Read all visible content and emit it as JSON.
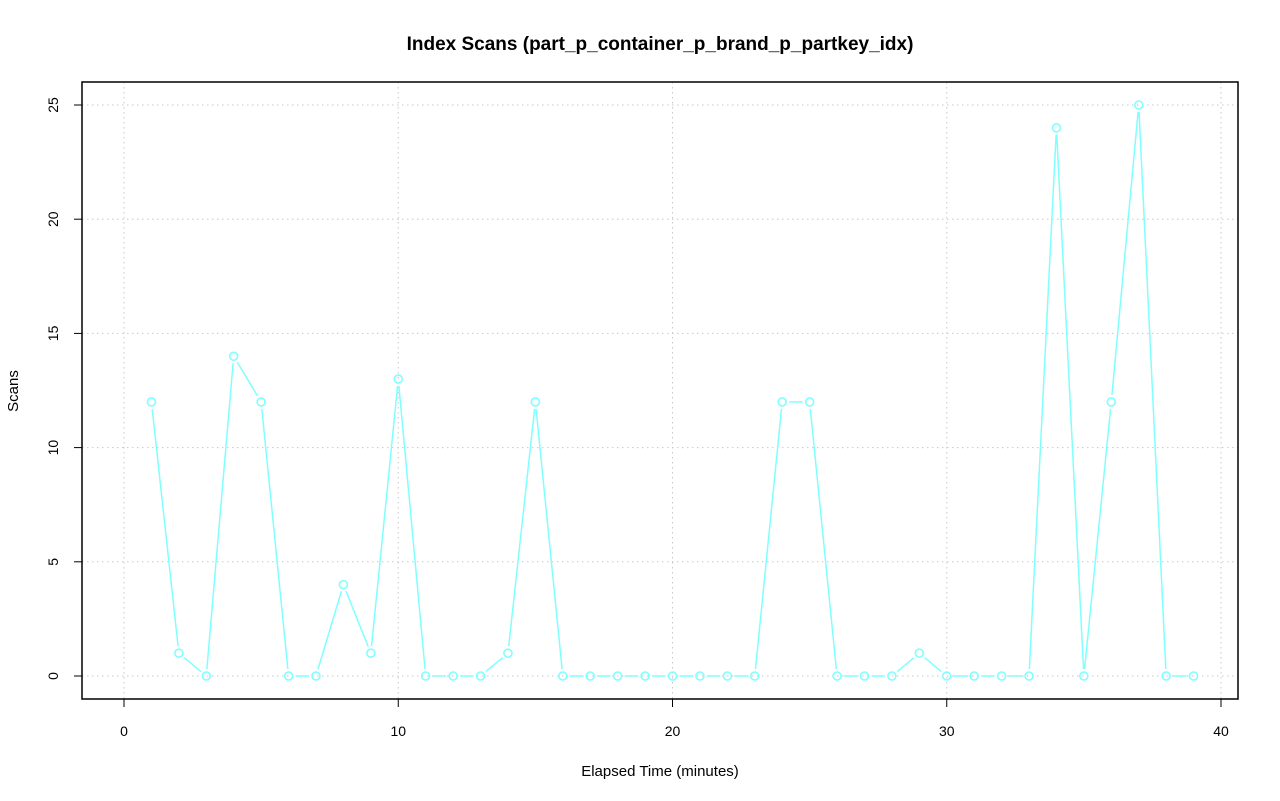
{
  "chart_data": {
    "type": "line",
    "title": "Index Scans (part_p_container_p_brand_p_partkey_idx)",
    "xlabel": "Elapsed Time (minutes)",
    "ylabel": "Scans",
    "xlim": [
      0,
      40
    ],
    "ylim": [
      0,
      25
    ],
    "x_ticks": [
      0,
      10,
      20,
      30,
      40
    ],
    "y_ticks": [
      0,
      5,
      10,
      15,
      20,
      25
    ],
    "grid": true,
    "legend": "none",
    "series": [
      {
        "color": "#7fffff",
        "marker": "open-circle",
        "x": [
          1,
          2,
          3,
          4,
          5,
          6,
          7,
          8,
          9,
          10,
          11,
          12,
          13,
          14,
          15,
          16,
          17,
          18,
          19,
          20,
          21,
          22,
          23,
          24,
          25,
          26,
          27,
          28,
          29,
          30,
          31,
          32,
          33,
          34,
          35,
          36,
          37,
          38,
          39
        ],
        "y": [
          12,
          1,
          0,
          14,
          12,
          0,
          0,
          4,
          1,
          13,
          0,
          0,
          0,
          1,
          12,
          0,
          0,
          0,
          0,
          0,
          0,
          0,
          0,
          12,
          12,
          0,
          0,
          0,
          1,
          0,
          0,
          0,
          0,
          24,
          0,
          12,
          25,
          0,
          0
        ]
      }
    ]
  }
}
